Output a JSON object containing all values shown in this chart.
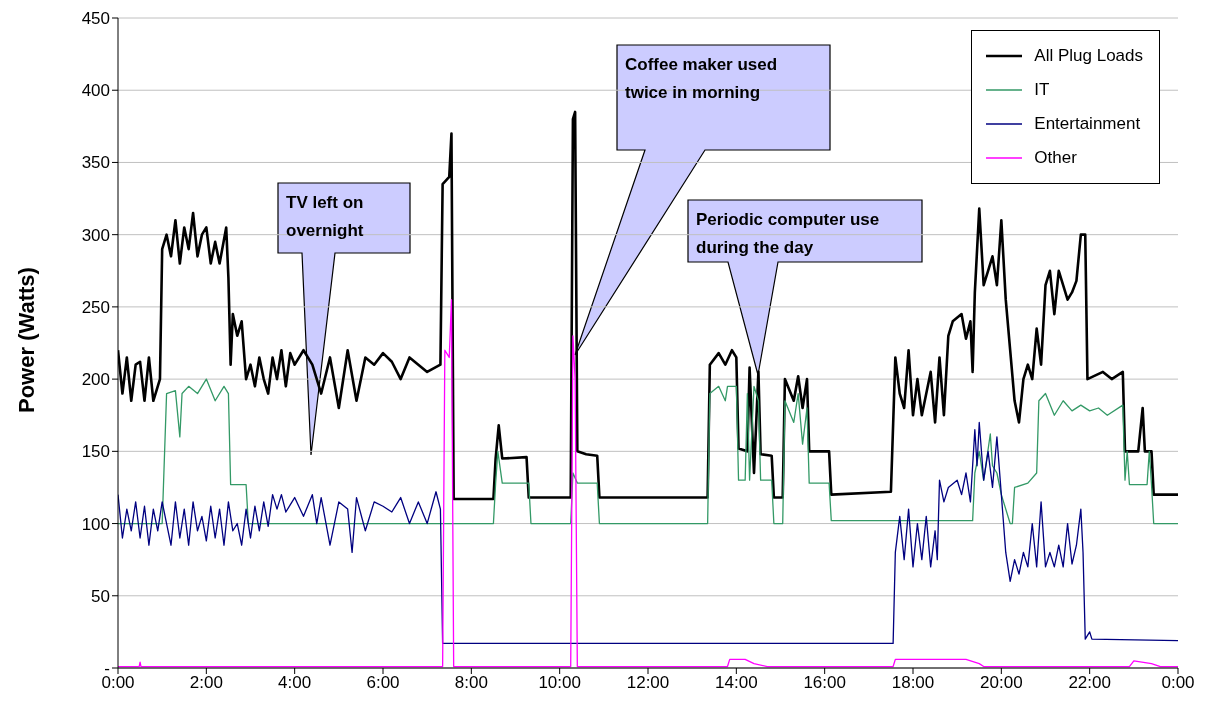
{
  "chart_data": {
    "type": "line",
    "ylabel": "Power (Watts)",
    "xlim": [
      0,
      24
    ],
    "ylim": [
      0,
      450
    ],
    "xticks": [
      {
        "value": 0,
        "label": "0:00"
      },
      {
        "value": 2,
        "label": "2:00"
      },
      {
        "value": 4,
        "label": "4:00"
      },
      {
        "value": 6,
        "label": "6:00"
      },
      {
        "value": 8,
        "label": "8:00"
      },
      {
        "value": 10,
        "label": "10:00"
      },
      {
        "value": 12,
        "label": "12:00"
      },
      {
        "value": 14,
        "label": "14:00"
      },
      {
        "value": 16,
        "label": "16:00"
      },
      {
        "value": 18,
        "label": "18:00"
      },
      {
        "value": 20,
        "label": "20:00"
      },
      {
        "value": 22,
        "label": "22:00"
      },
      {
        "value": 24,
        "label": "0:00"
      }
    ],
    "yticks": [
      {
        "value": 0,
        "label": "-"
      },
      50,
      100,
      150,
      200,
      250,
      300,
      350,
      400,
      450
    ],
    "grid": "y",
    "legend": "top right",
    "marker": "none",
    "line_style": "solid",
    "series": [
      {
        "name": "All Plug Loads",
        "color": "#000000",
        "x": [
          0,
          0.1,
          0.2,
          0.3,
          0.4,
          0.5,
          0.6,
          0.7,
          0.8,
          0.95,
          1.0,
          1.1,
          1.2,
          1.3,
          1.4,
          1.5,
          1.6,
          1.7,
          1.8,
          1.9,
          2.0,
          2.1,
          2.2,
          2.3,
          2.45,
          2.5,
          2.55,
          2.6,
          2.7,
          2.8,
          2.9,
          3.0,
          3.1,
          3.2,
          3.3,
          3.4,
          3.5,
          3.6,
          3.7,
          3.8,
          3.9,
          4.0,
          4.2,
          4.4,
          4.6,
          4.8,
          5.0,
          5.2,
          5.4,
          5.6,
          5.8,
          6.0,
          6.2,
          6.4,
          6.6,
          6.8,
          7.0,
          7.3,
          7.35,
          7.5,
          7.55,
          7.6,
          8.5,
          8.55,
          8.62,
          8.7,
          9.25,
          9.3,
          10.25,
          10.3,
          10.35,
          10.4,
          10.6,
          10.85,
          10.9,
          13.35,
          13.4,
          13.6,
          13.75,
          13.9,
          14.0,
          14.05,
          14.25,
          14.3,
          14.4,
          14.5,
          14.55,
          14.8,
          14.85,
          15.05,
          15.1,
          15.3,
          15.4,
          15.5,
          15.6,
          15.65,
          16.1,
          16.15,
          17.5,
          17.6,
          17.7,
          17.8,
          17.9,
          18.0,
          18.1,
          18.2,
          18.4,
          18.5,
          18.6,
          18.7,
          18.8,
          18.9,
          19.1,
          19.2,
          19.3,
          19.35,
          19.4,
          19.5,
          19.6,
          19.7,
          19.8,
          19.9,
          20.0,
          20.1,
          20.2,
          20.3,
          20.4,
          20.5,
          20.6,
          20.7,
          20.8,
          20.9,
          21.0,
          21.1,
          21.2,
          21.3,
          21.5,
          21.6,
          21.7,
          21.8,
          21.9,
          21.95,
          22.3,
          22.5,
          22.75,
          22.8,
          23.1,
          23.2,
          23.25,
          23.4,
          23.45,
          24
        ],
        "values": [
          220,
          190,
          215,
          185,
          210,
          212,
          185,
          215,
          185,
          200,
          290,
          300,
          285,
          310,
          280,
          305,
          290,
          315,
          285,
          300,
          305,
          280,
          295,
          280,
          305,
          270,
          210,
          245,
          230,
          240,
          200,
          210,
          195,
          215,
          200,
          190,
          215,
          200,
          220,
          195,
          218,
          210,
          220,
          210,
          190,
          215,
          180,
          220,
          185,
          215,
          210,
          218,
          212,
          200,
          215,
          210,
          205,
          210,
          335,
          340,
          370,
          117,
          117,
          145,
          168,
          145,
          146,
          118,
          118,
          380,
          385,
          150,
          148,
          147,
          118,
          118,
          210,
          218,
          210,
          220,
          215,
          152,
          150,
          208,
          135,
          205,
          148,
          147,
          118,
          118,
          200,
          185,
          202,
          180,
          200,
          150,
          150,
          120,
          122,
          215,
          190,
          180,
          220,
          175,
          200,
          175,
          205,
          170,
          215,
          175,
          230,
          240,
          245,
          228,
          240,
          205,
          260,
          318,
          265,
          275,
          285,
          265,
          310,
          255,
          220,
          185,
          170,
          200,
          210,
          200,
          235,
          210,
          265,
          275,
          245,
          275,
          255,
          260,
          268,
          300,
          300,
          200,
          205,
          200,
          205,
          150,
          150,
          180,
          150,
          150,
          120,
          120
        ]
      },
      {
        "name": "IT",
        "color": "#339966",
        "x": [
          0,
          1.0,
          1.1,
          1.3,
          1.4,
          1.45,
          1.6,
          1.8,
          2.0,
          2.2,
          2.4,
          2.5,
          2.55,
          2.9,
          2.95,
          8.5,
          8.55,
          8.6,
          8.7,
          9.3,
          9.35,
          10.25,
          10.3,
          10.4,
          10.85,
          10.9,
          13.35,
          13.4,
          13.6,
          13.75,
          13.8,
          14.0,
          14.05,
          14.2,
          14.25,
          14.3,
          14.4,
          14.5,
          14.55,
          14.8,
          14.85,
          15.05,
          15.1,
          15.3,
          15.4,
          15.5,
          15.6,
          15.65,
          16.1,
          16.15,
          19.35,
          19.4,
          19.5,
          19.6,
          19.75,
          19.8,
          19.9,
          20.0,
          20.2,
          20.25,
          20.3,
          20.6,
          20.8,
          20.85,
          21.0,
          21.2,
          21.4,
          21.6,
          21.8,
          22.0,
          22.2,
          22.4,
          22.75,
          22.8,
          22.85,
          22.9,
          23.3,
          23.35,
          23.4,
          23.45,
          24
        ],
        "values": [
          100,
          100,
          190,
          192,
          160,
          190,
          195,
          190,
          200,
          185,
          195,
          190,
          127,
          127,
          100,
          100,
          128,
          150,
          128,
          128,
          100,
          100,
          135,
          128,
          128,
          100,
          100,
          190,
          195,
          185,
          195,
          195,
          130,
          130,
          190,
          130,
          195,
          185,
          130,
          130,
          100,
          100,
          185,
          170,
          190,
          155,
          180,
          128,
          128,
          102,
          102,
          135,
          150,
          130,
          162,
          140,
          135,
          120,
          100,
          100,
          125,
          128,
          135,
          185,
          190,
          175,
          185,
          178,
          182,
          178,
          180,
          175,
          182,
          130,
          150,
          127,
          127,
          150,
          127,
          100,
          100
        ]
      },
      {
        "name": "Entertainment",
        "color": "#000080",
        "x": [
          0,
          0.1,
          0.2,
          0.3,
          0.4,
          0.5,
          0.6,
          0.7,
          0.8,
          0.9,
          1.0,
          1.1,
          1.2,
          1.3,
          1.4,
          1.5,
          1.6,
          1.7,
          1.8,
          1.9,
          2.0,
          2.1,
          2.2,
          2.3,
          2.4,
          2.5,
          2.6,
          2.7,
          2.8,
          2.9,
          3.0,
          3.1,
          3.2,
          3.3,
          3.4,
          3.5,
          3.6,
          3.7,
          3.8,
          4.0,
          4.2,
          4.4,
          4.5,
          4.6,
          4.8,
          5.0,
          5.2,
          5.3,
          5.4,
          5.6,
          5.8,
          6.0,
          6.2,
          6.4,
          6.6,
          6.8,
          7.0,
          7.2,
          7.3,
          7.35,
          10.0,
          17.55,
          17.6,
          17.7,
          17.8,
          17.9,
          18.0,
          18.1,
          18.2,
          18.3,
          18.4,
          18.5,
          18.55,
          18.6,
          18.7,
          18.8,
          19.0,
          19.1,
          19.2,
          19.3,
          19.4,
          19.45,
          19.5,
          19.6,
          19.7,
          19.8,
          19.9,
          20.0,
          20.1,
          20.2,
          20.3,
          20.4,
          20.5,
          20.6,
          20.7,
          20.8,
          20.9,
          21.0,
          21.1,
          21.2,
          21.3,
          21.4,
          21.5,
          21.6,
          21.7,
          21.8,
          21.85,
          21.9,
          22.0,
          22.05,
          24
        ],
        "values": [
          120,
          90,
          110,
          95,
          115,
          90,
          112,
          85,
          110,
          95,
          115,
          100,
          85,
          115,
          90,
          110,
          85,
          115,
          95,
          105,
          88,
          112,
          90,
          110,
          85,
          115,
          95,
          100,
          85,
          110,
          90,
          112,
          95,
          115,
          98,
          120,
          110,
          120,
          108,
          118,
          105,
          120,
          100,
          118,
          85,
          115,
          110,
          80,
          118,
          95,
          115,
          112,
          108,
          118,
          100,
          115,
          100,
          122,
          110,
          17,
          17,
          17,
          80,
          105,
          75,
          110,
          70,
          100,
          75,
          105,
          70,
          95,
          75,
          130,
          115,
          125,
          130,
          120,
          135,
          115,
          165,
          140,
          170,
          130,
          150,
          125,
          160,
          120,
          80,
          60,
          75,
          65,
          80,
          70,
          100,
          70,
          115,
          70,
          80,
          70,
          85,
          70,
          100,
          72,
          85,
          110,
          80,
          20,
          25,
          20,
          19
        ]
      },
      {
        "name": "Other",
        "color": "#ff00ff",
        "x": [
          0,
          0.48,
          0.5,
          0.52,
          7.35,
          7.4,
          7.5,
          7.55,
          7.6,
          10.25,
          10.3,
          10.35,
          10.4,
          13.8,
          13.85,
          14.2,
          14.4,
          14.7,
          17.55,
          17.6,
          19.2,
          19.5,
          19.6,
          22.9,
          23.0,
          23.4,
          23.6,
          24
        ],
        "values": [
          1,
          1,
          4,
          1,
          1,
          220,
          215,
          255,
          1,
          1,
          230,
          200,
          1,
          1,
          6,
          6,
          3,
          1,
          1,
          6,
          6,
          3,
          1,
          1,
          5,
          3,
          1,
          1
        ]
      }
    ],
    "annotations": [
      "TV left on overnight",
      "Coffee maker used twice in morning",
      "Periodic computer use during the day"
    ]
  }
}
